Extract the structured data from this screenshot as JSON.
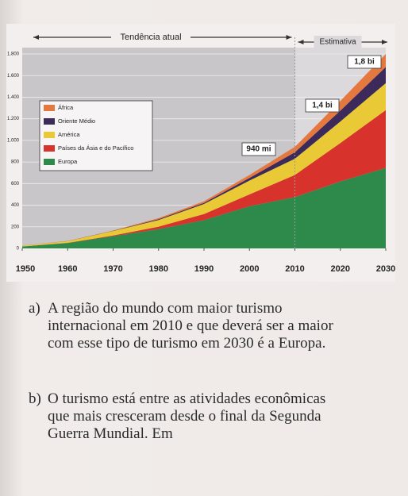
{
  "chart_data": {
    "type": "stacked_area",
    "x": [
      1950,
      1960,
      1970,
      1980,
      1990,
      2000,
      2010,
      2020,
      2030
    ],
    "xlim": [
      1950,
      2030
    ],
    "xticks": [
      1950,
      1960,
      1970,
      1980,
      1990,
      2000,
      2010,
      2020,
      2030
    ],
    "ylim": [
      0,
      1800
    ],
    "yticks": [
      0,
      200,
      400,
      600,
      800,
      {
        "value": 1000,
        "label": "1.000"
      },
      {
        "value": 1200,
        "label": "1.200"
      },
      {
        "value": 1400,
        "label": "1.400"
      },
      {
        "value": 1600,
        "label": "1.600"
      },
      {
        "value": 1800,
        "label": "1.800"
      }
    ],
    "grid": true,
    "series": [
      {
        "name": "Europa",
        "color": "#2e8a4a",
        "values": [
          17,
          50,
          113,
          178,
          262,
          390,
          475,
          620,
          745
        ]
      },
      {
        "name": "Países da Ásia e do Pacífico",
        "color": "#d8322c",
        "values": [
          0.2,
          1,
          6,
          23,
          56,
          110,
          205,
          355,
          535
        ]
      },
      {
        "name": "América",
        "color": "#e9c935",
        "values": [
          7.5,
          16,
          42,
          62,
          93,
          128,
          150,
          200,
          250
        ]
      },
      {
        "name": "Oriente Médio",
        "color": "#3b2a5a",
        "values": [
          0.2,
          1,
          2,
          7,
          10,
          24,
          60,
          100,
          150
        ]
      },
      {
        "name": "África",
        "color": "#e5783f",
        "values": [
          0.5,
          1,
          2,
          10,
          15,
          28,
          50,
          90,
          120
        ]
      }
    ],
    "periods": [
      "Tendência atual",
      "Estimativa"
    ],
    "annotations": [
      "940 mi",
      "1,4 bi",
      "1,8 bi"
    ]
  },
  "questions": [
    {
      "label": "a)",
      "text": "A região do mundo com maior turismo internacional em 2010 e que deverá ser a maior com esse tipo de turismo em 2030 é a Europa."
    },
    {
      "label": "b)",
      "text": "O turismo está entre as atividades econômicas que mais cresceram desde o final da Segunda Guerra Mundial. Em"
    }
  ]
}
